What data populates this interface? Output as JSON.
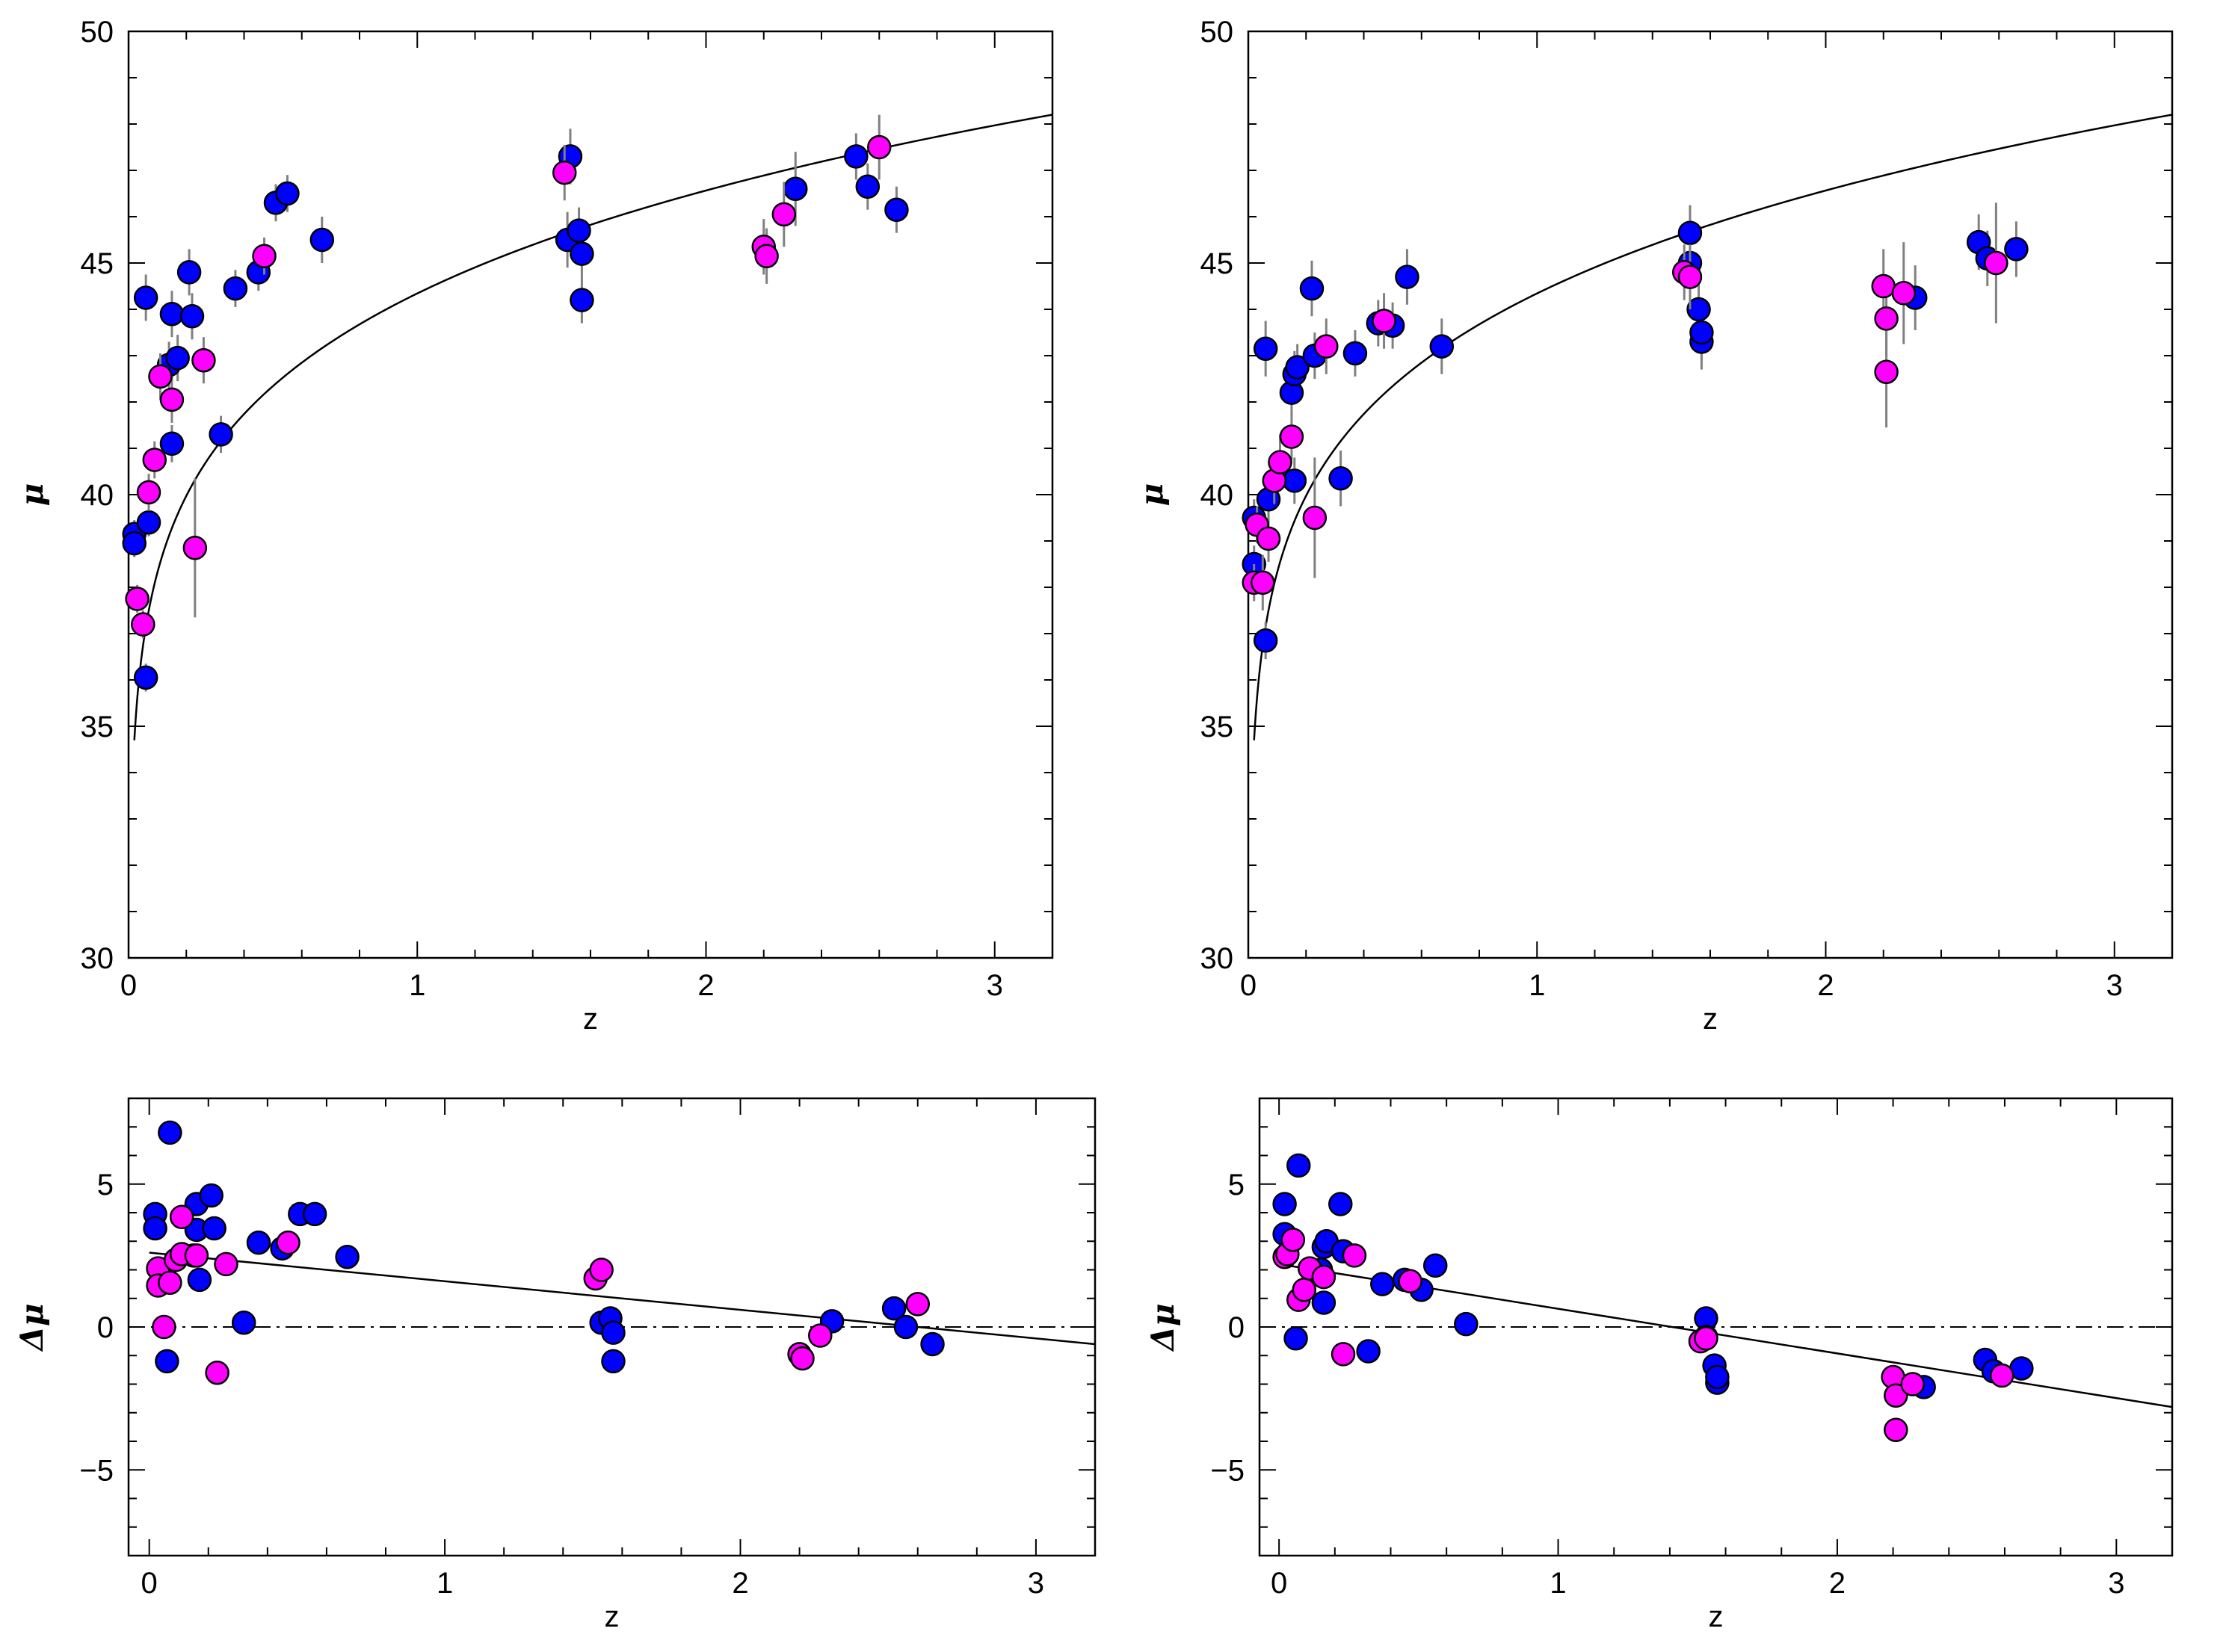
{
  "chart_data": [
    {
      "id": "top-left",
      "type": "scatter",
      "xlabel": "z",
      "ylabel": "μ",
      "xlim": [
        0,
        3.2
      ],
      "ylim": [
        30,
        50
      ],
      "xticks": [
        0,
        1,
        2,
        3
      ],
      "yticks": [
        30,
        35,
        40,
        45,
        50
      ],
      "xtick_labels": [
        "0",
        "1",
        "2",
        "3"
      ],
      "ytick_labels": [
        "30",
        "35",
        "40",
        "45",
        "50"
      ],
      "minor_x": 0.2,
      "minor_y": 1,
      "colors": {
        "blue": "#0000ff",
        "magenta": "#ff00ff",
        "errorbar": "#808080",
        "line": "#000000"
      },
      "model_curve": "distance_modulus",
      "series": [
        {
          "name": "blue",
          "color": "#0000ff",
          "points": [
            [
              0.02,
              39.15,
              0.3
            ],
            [
              0.02,
              38.95,
              0.3
            ],
            [
              0.06,
              44.25,
              0.5
            ],
            [
              0.07,
              39.4,
              0.3
            ],
            [
              0.06,
              36.05,
              0.3
            ],
            [
              0.15,
              43.9,
              0.5
            ],
            [
              0.15,
              41.1,
              0.4
            ],
            [
              0.14,
              42.8,
              0.5
            ],
            [
              0.17,
              42.95,
              0.5
            ],
            [
              0.21,
              44.8,
              0.5
            ],
            [
              0.22,
              43.85,
              0.5
            ],
            [
              0.32,
              41.3,
              0.4
            ],
            [
              0.37,
              44.45,
              0.4
            ],
            [
              0.45,
              44.8,
              0.4
            ],
            [
              0.51,
              46.3,
              0.4
            ],
            [
              0.55,
              46.5,
              0.4
            ],
            [
              0.67,
              45.5,
              0.5
            ],
            [
              1.53,
              47.3,
              0.6
            ],
            [
              1.52,
              45.5,
              0.6
            ],
            [
              1.56,
              45.7,
              0.5
            ],
            [
              1.57,
              44.2,
              0.5
            ],
            [
              1.57,
              45.2,
              0.5
            ],
            [
              2.31,
              46.6,
              0.8
            ],
            [
              2.52,
              47.3,
              0.5
            ],
            [
              2.56,
              46.65,
              0.5
            ],
            [
              2.66,
              46.15,
              0.5
            ]
          ]
        },
        {
          "name": "magenta",
          "color": "#ff00ff",
          "points": [
            [
              0.03,
              37.75,
              0.3
            ],
            [
              0.05,
              37.2,
              0.3
            ],
            [
              0.07,
              40.05,
              0.4
            ],
            [
              0.09,
              40.75,
              0.4
            ],
            [
              0.11,
              42.55,
              0.5
            ],
            [
              0.15,
              42.05,
              0.5
            ],
            [
              0.23,
              38.85,
              1.5
            ],
            [
              0.26,
              42.9,
              0.5
            ],
            [
              0.47,
              45.15,
              0.4
            ],
            [
              1.51,
              46.95,
              0.6
            ],
            [
              2.2,
              45.35,
              0.6
            ],
            [
              2.21,
              45.15,
              0.6
            ],
            [
              2.27,
              46.05,
              0.7
            ],
            [
              2.6,
              47.5,
              0.7
            ]
          ]
        }
      ]
    },
    {
      "id": "top-right",
      "type": "scatter",
      "xlabel": "z",
      "ylabel": "μ",
      "xlim": [
        0,
        3.2
      ],
      "ylim": [
        30,
        50
      ],
      "xticks": [
        0,
        1,
        2,
        3
      ],
      "yticks": [
        30,
        35,
        40,
        45,
        50
      ],
      "xtick_labels": [
        "0",
        "1",
        "2",
        "3"
      ],
      "ytick_labels": [
        "30",
        "35",
        "40",
        "45",
        "50"
      ],
      "minor_x": 0.2,
      "minor_y": 1,
      "colors": {
        "blue": "#0000ff",
        "magenta": "#ff00ff",
        "errorbar": "#808080",
        "line": "#000000"
      },
      "model_curve": "distance_modulus",
      "series": [
        {
          "name": "blue",
          "color": "#0000ff",
          "points": [
            [
              0.02,
              39.5,
              0.4
            ],
            [
              0.02,
              38.5,
              0.4
            ],
            [
              0.06,
              43.15,
              0.6
            ],
            [
              0.07,
              39.9,
              0.4
            ],
            [
              0.06,
              36.85,
              0.4
            ],
            [
              0.15,
              42.2,
              0.5
            ],
            [
              0.16,
              40.3,
              0.5
            ],
            [
              0.16,
              42.6,
              0.5
            ],
            [
              0.17,
              42.75,
              0.5
            ],
            [
              0.22,
              44.45,
              0.6
            ],
            [
              0.23,
              43.0,
              0.5
            ],
            [
              0.32,
              40.35,
              0.6
            ],
            [
              0.37,
              43.05,
              0.5
            ],
            [
              0.45,
              43.7,
              0.5
            ],
            [
              0.5,
              43.65,
              0.5
            ],
            [
              0.55,
              44.7,
              0.6
            ],
            [
              0.67,
              43.2,
              0.6
            ],
            [
              1.53,
              45.65,
              0.6
            ],
            [
              1.53,
              45.0,
              0.7
            ],
            [
              1.56,
              44.0,
              0.6
            ],
            [
              1.57,
              43.3,
              0.6
            ],
            [
              1.57,
              43.5,
              0.6
            ],
            [
              2.31,
              44.25,
              0.7
            ],
            [
              2.53,
              45.45,
              0.6
            ],
            [
              2.56,
              45.1,
              0.6
            ],
            [
              2.66,
              45.3,
              0.6
            ]
          ]
        },
        {
          "name": "magenta",
          "color": "#ff00ff",
          "points": [
            [
              0.02,
              38.1,
              0.4
            ],
            [
              0.03,
              39.35,
              0.4
            ],
            [
              0.05,
              38.1,
              0.6
            ],
            [
              0.07,
              39.05,
              0.5
            ],
            [
              0.09,
              40.3,
              0.5
            ],
            [
              0.11,
              40.7,
              0.6
            ],
            [
              0.15,
              41.25,
              0.5
            ],
            [
              0.23,
              39.5,
              1.3
            ],
            [
              0.27,
              43.2,
              0.6
            ],
            [
              0.47,
              43.75,
              0.6
            ],
            [
              1.51,
              44.8,
              0.6
            ],
            [
              1.53,
              44.7,
              0.7
            ],
            [
              2.2,
              44.5,
              0.8
            ],
            [
              2.21,
              43.8,
              0.8
            ],
            [
              2.21,
              42.65,
              1.2
            ],
            [
              2.27,
              44.35,
              1.1
            ],
            [
              2.59,
              45.0,
              1.3
            ]
          ]
        }
      ]
    },
    {
      "id": "bottom-left",
      "type": "scatter",
      "xlabel": "z",
      "ylabel": "Δμ",
      "xlim": [
        -0.07,
        3.2
      ],
      "ylim": [
        -8,
        8
      ],
      "xticks": [
        0,
        1,
        2,
        3
      ],
      "yticks": [
        -5,
        0,
        5
      ],
      "xtick_labels": [
        "0",
        "1",
        "2",
        "3"
      ],
      "ytick_labels": [
        "−5",
        "0",
        "5"
      ],
      "minor_x": 0.2,
      "minor_y": 1,
      "colors": {
        "blue": "#0000ff",
        "magenta": "#ff00ff",
        "line": "#000000"
      },
      "fit_line": {
        "x": [
          0,
          3.2
        ],
        "y": [
          2.6,
          -0.6
        ]
      },
      "zero_line": true,
      "series": [
        {
          "name": "blue",
          "color": "#0000ff",
          "points": [
            [
              0.02,
              3.95
            ],
            [
              0.02,
              3.45
            ],
            [
              0.06,
              -1.2
            ],
            [
              0.07,
              6.8
            ],
            [
              0.15,
              2.5
            ],
            [
              0.16,
              3.4
            ],
            [
              0.16,
              4.3
            ],
            [
              0.17,
              1.65
            ],
            [
              0.21,
              4.6
            ],
            [
              0.22,
              3.45
            ],
            [
              0.32,
              0.15
            ],
            [
              0.37,
              2.95
            ],
            [
              0.45,
              2.75
            ],
            [
              0.51,
              3.95
            ],
            [
              0.56,
              3.95
            ],
            [
              0.67,
              2.45
            ],
            [
              1.53,
              0.15
            ],
            [
              1.56,
              0.3
            ],
            [
              1.57,
              -0.2
            ],
            [
              1.57,
              -1.2
            ],
            [
              2.31,
              0.2
            ],
            [
              2.52,
              0.65
            ],
            [
              2.56,
              0.0
            ],
            [
              2.65,
              -0.6
            ]
          ]
        },
        {
          "name": "magenta",
          "color": "#ff00ff",
          "points": [
            [
              0.03,
              2.05
            ],
            [
              0.03,
              1.45
            ],
            [
              0.05,
              0.0
            ],
            [
              0.07,
              1.55
            ],
            [
              0.09,
              2.35
            ],
            [
              0.11,
              2.55
            ],
            [
              0.11,
              3.85
            ],
            [
              0.16,
              2.5
            ],
            [
              0.23,
              -1.6
            ],
            [
              0.26,
              2.2
            ],
            [
              0.47,
              2.95
            ],
            [
              1.51,
              1.7
            ],
            [
              1.53,
              2.0
            ],
            [
              2.2,
              -0.95
            ],
            [
              2.21,
              -1.1
            ],
            [
              2.27,
              -0.3
            ],
            [
              2.6,
              0.8
            ]
          ]
        }
      ]
    },
    {
      "id": "bottom-right",
      "type": "scatter",
      "xlabel": "z",
      "ylabel": "Δμ",
      "xlim": [
        -0.07,
        3.2
      ],
      "ylim": [
        -8,
        8
      ],
      "xticks": [
        0,
        1,
        2,
        3
      ],
      "yticks": [
        -5,
        0,
        5
      ],
      "xtick_labels": [
        "0",
        "1",
        "2",
        "3"
      ],
      "ytick_labels": [
        "−5",
        "0",
        "5"
      ],
      "minor_x": 0.2,
      "minor_y": 1,
      "colors": {
        "blue": "#0000ff",
        "magenta": "#ff00ff",
        "line": "#000000"
      },
      "fit_line": {
        "x": [
          0,
          3.2
        ],
        "y": [
          2.2,
          -2.8
        ]
      },
      "zero_line": true,
      "series": [
        {
          "name": "blue",
          "color": "#0000ff",
          "points": [
            [
              0.02,
              4.3
            ],
            [
              0.02,
              3.25
            ],
            [
              0.06,
              -0.4
            ],
            [
              0.07,
              5.65
            ],
            [
              0.15,
              2.0
            ],
            [
              0.16,
              2.8
            ],
            [
              0.16,
              0.85
            ],
            [
              0.17,
              3.0
            ],
            [
              0.22,
              4.3
            ],
            [
              0.23,
              2.65
            ],
            [
              0.32,
              -0.85
            ],
            [
              0.37,
              1.5
            ],
            [
              0.45,
              1.65
            ],
            [
              0.51,
              1.3
            ],
            [
              0.56,
              2.15
            ],
            [
              0.67,
              0.1
            ],
            [
              1.53,
              0.3
            ],
            [
              1.53,
              -0.35
            ],
            [
              1.56,
              -1.35
            ],
            [
              1.57,
              -1.95
            ],
            [
              1.57,
              -1.75
            ],
            [
              2.31,
              -2.1
            ],
            [
              2.53,
              -1.15
            ],
            [
              2.56,
              -1.55
            ],
            [
              2.66,
              -1.45
            ]
          ]
        },
        {
          "name": "magenta",
          "color": "#ff00ff",
          "points": [
            [
              0.02,
              2.45
            ],
            [
              0.03,
              2.55
            ],
            [
              0.05,
              3.05
            ],
            [
              0.07,
              0.95
            ],
            [
              0.09,
              1.3
            ],
            [
              0.11,
              2.05
            ],
            [
              0.16,
              1.75
            ],
            [
              0.23,
              -0.95
            ],
            [
              0.27,
              2.5
            ],
            [
              0.47,
              1.6
            ],
            [
              1.51,
              -0.5
            ],
            [
              1.53,
              -0.4
            ],
            [
              2.2,
              -1.75
            ],
            [
              2.21,
              -2.4
            ],
            [
              2.21,
              -3.6
            ],
            [
              2.27,
              -2.0
            ],
            [
              2.59,
              -1.7
            ]
          ]
        }
      ]
    }
  ]
}
